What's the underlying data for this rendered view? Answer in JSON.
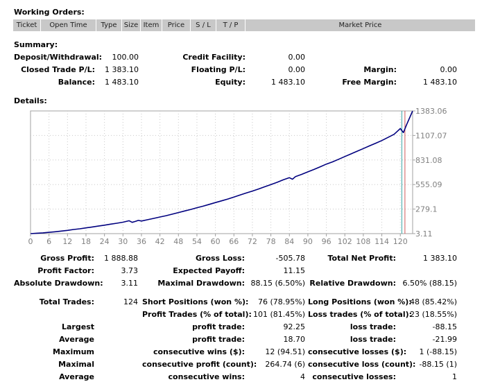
{
  "working_orders": {
    "title": "Working Orders:",
    "columns": [
      "Ticket",
      "Open Time",
      "Type",
      "Size",
      "Item",
      "Price",
      "S / L",
      "T / P",
      "Market Price"
    ]
  },
  "summary": {
    "title": "Summary:",
    "deposit_label": "Deposit/Withdrawal:",
    "deposit_value": "100.00",
    "credit_label": "Credit Facility:",
    "credit_value": "0.00",
    "closed_label": "Closed Trade P/L:",
    "closed_value": "1 383.10",
    "floating_label": "Floating P/L:",
    "floating_value": "0.00",
    "margin_label": "Margin:",
    "margin_value": "0.00",
    "balance_label": "Balance:",
    "balance_value": "1 483.10",
    "equity_label": "Equity:",
    "equity_value": "1 483.10",
    "free_margin_label": "Free Margin:",
    "free_margin_value": "1 483.10"
  },
  "details": {
    "title": "Details:",
    "rows": [
      [
        {
          "label": "Gross Profit:",
          "value": "1 888.88"
        },
        {
          "label": "Gross Loss:",
          "value": "-505.78"
        },
        {
          "label": "Total Net Profit:",
          "value": "1 383.10"
        }
      ],
      [
        {
          "label": "Profit Factor:",
          "value": "3.73"
        },
        {
          "label": "Expected Payoff:",
          "value": "11.15"
        },
        {
          "label": "",
          "value": ""
        }
      ],
      [
        {
          "label": "Absolute Drawdown:",
          "value": "3.11"
        },
        {
          "label": "Maximal Drawdown:",
          "value": "88.15 (6.50%)"
        },
        {
          "label": "Relative Drawdown:",
          "value": "6.50% (88.15)"
        }
      ]
    ],
    "trades": [
      [
        {
          "label": "Total Trades:",
          "value": "124"
        },
        {
          "label": "Short Positions (won %):",
          "value": "76 (78.95%)"
        },
        {
          "label": "Long Positions (won %):",
          "value": "48 (85.42%)"
        }
      ],
      [
        {
          "label": "",
          "value": ""
        },
        {
          "label": "Profit Trades (% of total):",
          "value": "101 (81.45%)"
        },
        {
          "label": "Loss trades (% of total):",
          "value": "23 (18.55%)"
        }
      ],
      [
        {
          "label": "Largest",
          "value": ""
        },
        {
          "label": "profit trade:",
          "value": "92.25"
        },
        {
          "label": "loss trade:",
          "value": "-88.15"
        }
      ],
      [
        {
          "label": "Average",
          "value": ""
        },
        {
          "label": "profit trade:",
          "value": "18.70"
        },
        {
          "label": "loss trade:",
          "value": "-21.99"
        }
      ],
      [
        {
          "label": "Maximum",
          "value": ""
        },
        {
          "label": "consecutive wins ($):",
          "value": "12 (94.51)"
        },
        {
          "label": "consecutive losses ($):",
          "value": "1 (-88.15)"
        }
      ],
      [
        {
          "label": "Maximal",
          "value": ""
        },
        {
          "label": "consecutive profit (count):",
          "value": "264.74 (6)"
        },
        {
          "label": "consecutive loss (count):",
          "value": "-88.15 (1)"
        }
      ],
      [
        {
          "label": "Average",
          "value": ""
        },
        {
          "label": "consecutive wins:",
          "value": "4"
        },
        {
          "label": "consecutive losses:",
          "value": "1"
        }
      ]
    ]
  },
  "chart_data": {
    "type": "line",
    "title": "",
    "xlabel": "",
    "ylabel": "",
    "xlim": [
      0,
      124
    ],
    "ylim": [
      3.11,
      1383.06
    ],
    "x_ticks": [
      "0",
      "6",
      "12",
      "18",
      "24",
      "30",
      "36",
      "42",
      "48",
      "54",
      "60",
      "66",
      "72",
      "78",
      "84",
      "90",
      "96",
      "102",
      "108",
      "114",
      "120"
    ],
    "y_ticks": [
      "3.11",
      "279.1",
      "555.09",
      "831.08",
      "1107.07",
      "1383.06"
    ],
    "grid": true,
    "line_color": "#00007f",
    "marker_lines": [
      {
        "x": 120.5,
        "color": "#3aa6a6"
      },
      {
        "x": 121.5,
        "color": "#d05a5a"
      }
    ],
    "series": [
      {
        "x": [
          0,
          2,
          4,
          6,
          8,
          10,
          12,
          14,
          16,
          18,
          20,
          22,
          24,
          26,
          28,
          30,
          32,
          33,
          34,
          35,
          36,
          38,
          40,
          42,
          44,
          46,
          48,
          50,
          52,
          54,
          56,
          58,
          60,
          62,
          64,
          66,
          68,
          70,
          72,
          74,
          76,
          78,
          80,
          82,
          84,
          85,
          86,
          88,
          90,
          92,
          94,
          96,
          98,
          100,
          102,
          104,
          106,
          108,
          110,
          112,
          114,
          116,
          118,
          120,
          121,
          122,
          124
        ],
        "y": [
          3.11,
          8,
          12,
          18,
          24,
          32,
          40,
          50,
          58,
          68,
          78,
          88,
          98,
          110,
          120,
          132,
          148,
          130,
          140,
          152,
          145,
          160,
          175,
          190,
          205,
          222,
          240,
          258,
          275,
          295,
          312,
          332,
          352,
          372,
          392,
          415,
          438,
          460,
          482,
          505,
          530,
          555,
          580,
          608,
          632,
          615,
          645,
          670,
          698,
          725,
          755,
          785,
          810,
          840,
          870,
          900,
          930,
          960,
          990,
          1020,
          1050,
          1085,
          1120,
          1185,
          1140,
          1225,
          1383.06
        ]
      }
    ]
  }
}
